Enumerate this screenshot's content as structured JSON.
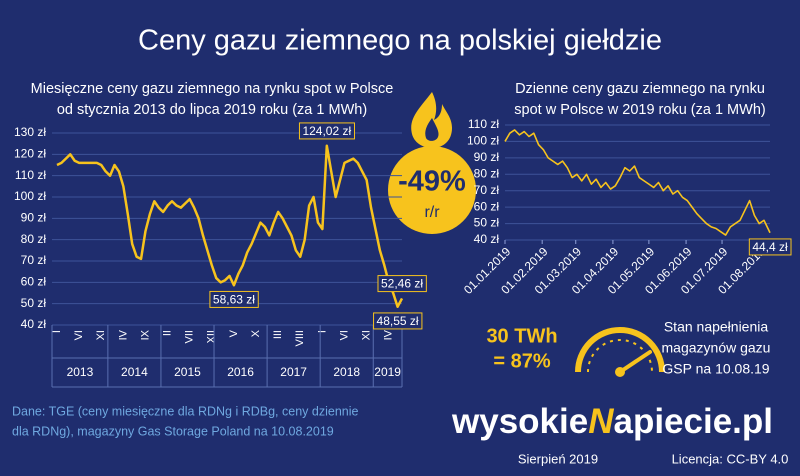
{
  "title": "Ceny gazu ziemnego na polskiej giełdzie",
  "badge": {
    "value": "-49%",
    "sub": "r/r"
  },
  "storage": {
    "amount": "30 TWh",
    "percent": "= 87%",
    "caption": [
      "Stan napełnienia",
      "magazynów gazu",
      "GSP na 10.08.19"
    ]
  },
  "source": [
    "Dane: TGE (ceny miesięczne dla RDNg i RDBg, ceny dziennie",
    "dla RDNg), magazyny Gas Storage Poland na 10.08.2019"
  ],
  "logo": [
    "wysokie",
    "N",
    "apiecie.pl"
  ],
  "date": "Sierpień 2019",
  "license": "Licencja: CC-BY 4.0",
  "chart_data": [
    {
      "type": "line",
      "title": [
        "Miesięczne ceny gazu ziemnego na rynku spot w Polsce",
        "od stycznia 2013 do lipca 2019 roku (za 1 MWh)"
      ],
      "color": "#f7c31d",
      "grid": true,
      "categories": [
        "I",
        null,
        null,
        null,
        null,
        "VI",
        null,
        null,
        null,
        null,
        "XI",
        null,
        null,
        null,
        null,
        "IV",
        null,
        null,
        null,
        null,
        "IX",
        null,
        null,
        null,
        null,
        "II",
        null,
        null,
        null,
        null,
        "VII",
        null,
        null,
        null,
        null,
        "XII",
        null,
        null,
        null,
        null,
        "V",
        null,
        null,
        null,
        null,
        "X",
        null,
        null,
        null,
        null,
        "III",
        null,
        null,
        null,
        null,
        "VIII",
        null,
        null,
        null,
        null,
        "I",
        null,
        null,
        null,
        null,
        "VI",
        null,
        null,
        null,
        null,
        "XI",
        null,
        null,
        null,
        null,
        "IV",
        null,
        null,
        null
      ],
      "years": [
        "2013",
        "2014",
        "2015",
        "2016",
        "2017",
        "2018",
        "2019"
      ],
      "values": [
        115,
        116,
        118,
        120,
        117,
        116,
        116,
        116,
        116,
        116,
        115,
        112,
        110,
        115,
        112,
        105,
        92,
        78,
        72,
        71,
        84,
        92,
        98,
        95,
        93,
        96,
        98,
        96,
        95,
        97,
        99,
        95,
        90,
        82,
        75,
        68,
        62,
        60,
        61,
        63,
        58.63,
        64,
        68,
        74,
        78,
        83,
        88,
        86,
        82,
        88,
        93,
        90,
        86,
        82,
        75,
        72,
        80,
        96,
        100,
        88,
        85,
        124.02,
        112,
        100,
        108,
        116,
        117,
        118,
        116,
        112,
        108,
        95,
        85,
        75,
        68,
        60,
        55,
        48.55,
        52.46
      ],
      "value_labels": [
        null,
        null,
        null,
        null,
        null,
        null,
        null,
        null,
        null,
        null,
        null,
        null,
        null,
        null,
        null,
        null,
        null,
        null,
        null,
        null,
        null,
        null,
        null,
        null,
        null,
        null,
        null,
        null,
        null,
        null,
        null,
        null,
        null,
        null,
        null,
        null,
        null,
        null,
        null,
        null,
        "58,63 zł",
        null,
        null,
        null,
        null,
        null,
        null,
        null,
        null,
        null,
        null,
        null,
        null,
        null,
        null,
        null,
        null,
        null,
        null,
        null,
        null,
        "124,02 zł",
        null,
        null,
        null,
        null,
        null,
        null,
        null,
        null,
        null,
        null,
        null,
        null,
        null,
        null,
        null,
        "48,55 zł",
        "52,46 zł"
      ],
      "ylim": [
        40,
        130
      ],
      "yticks": [
        {
          "value": 40,
          "label": "40 zł"
        },
        {
          "value": 50,
          "label": "50 zł"
        },
        {
          "value": 60,
          "label": "60 zł"
        },
        {
          "value": 70,
          "label": "70 zł"
        },
        {
          "value": 80,
          "label": "80 zł"
        },
        {
          "value": 90,
          "label": "90 zł"
        },
        {
          "value": 100,
          "label": "100 zł"
        },
        {
          "value": 110,
          "label": "110 zł"
        },
        {
          "value": 120,
          "label": "120 zł"
        },
        {
          "value": 130,
          "label": "130 zł"
        }
      ]
    },
    {
      "type": "line",
      "title": [
        "Dzienne ceny gazu ziemnego na rynku",
        "spot w Polsce w 2019 roku (za 1 MWh)"
      ],
      "color": "#f7c31d",
      "grid": true,
      "x": [
        1,
        5,
        9,
        13,
        17,
        21,
        25,
        29,
        33,
        37,
        41,
        45,
        49,
        53,
        57,
        61,
        65,
        69,
        73,
        77,
        81,
        85,
        89,
        93,
        97,
        101,
        105,
        109,
        113,
        117,
        121,
        125,
        129,
        133,
        137,
        141,
        145,
        149,
        153,
        157,
        161,
        165,
        169,
        173,
        177,
        181,
        185,
        189,
        193,
        197,
        201,
        205,
        209,
        213,
        217,
        222
      ],
      "values": [
        100,
        105,
        107,
        104,
        106,
        103,
        105,
        98,
        95,
        90,
        88,
        86,
        88,
        84,
        78,
        80,
        76,
        80,
        74,
        77,
        72,
        75,
        71,
        73,
        78,
        84,
        82,
        85,
        78,
        76,
        74,
        72,
        75,
        70,
        73,
        68,
        70,
        66,
        64,
        60,
        56,
        53,
        50,
        48,
        47,
        45,
        43,
        48,
        50,
        52,
        58,
        64,
        55,
        50,
        52,
        44.4
      ],
      "value_labels": [
        null,
        null,
        null,
        null,
        null,
        null,
        null,
        null,
        null,
        null,
        null,
        null,
        null,
        null,
        null,
        null,
        null,
        null,
        null,
        null,
        null,
        null,
        null,
        null,
        null,
        null,
        null,
        null,
        null,
        null,
        null,
        null,
        null,
        null,
        null,
        null,
        null,
        null,
        null,
        null,
        null,
        null,
        null,
        null,
        null,
        null,
        null,
        null,
        null,
        null,
        null,
        null,
        null,
        null,
        null,
        "44,4 zł"
      ],
      "xlim": [
        1,
        222
      ],
      "xticks": [
        {
          "value": 1,
          "label": "01.01.2019"
        },
        {
          "value": 32,
          "label": "01.02.2019"
        },
        {
          "value": 60,
          "label": "01.03.2019"
        },
        {
          "value": 91,
          "label": "01.04.2019"
        },
        {
          "value": 121,
          "label": "01.05.2019"
        },
        {
          "value": 152,
          "label": "01.06.2019"
        },
        {
          "value": 182,
          "label": "01.07.2019"
        },
        {
          "value": 213,
          "label": "01.08.2019"
        }
      ],
      "ylim": [
        40,
        110
      ],
      "yticks": [
        {
          "value": 40,
          "label": "40 zł"
        },
        {
          "value": 50,
          "label": "50 zł"
        },
        {
          "value": 60,
          "label": "60 zł"
        },
        {
          "value": 70,
          "label": "70 zł"
        },
        {
          "value": 80,
          "label": "80 zł"
        },
        {
          "value": 90,
          "label": "90 zł"
        },
        {
          "value": 100,
          "label": "100 zł"
        },
        {
          "value": 110,
          "label": "110 zł"
        }
      ]
    }
  ]
}
